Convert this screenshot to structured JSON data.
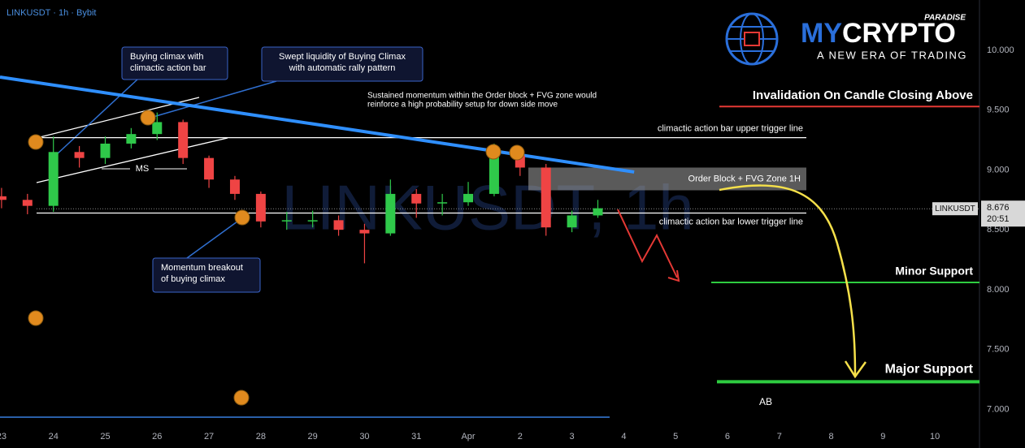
{
  "chart_data": {
    "type": "candlestick",
    "title": "LINKUSDT · 1h · Bybit",
    "watermark": "LINKUSDT, 1h",
    "branding": {
      "name_a": "MY",
      "name_b": "CRYPTO",
      "tag": "PARADISE",
      "slogan": "A NEW ERA OF TRADING"
    },
    "x": [
      0,
      0.5,
      1,
      1.5,
      2,
      2.5,
      3,
      3.5,
      4,
      4.5,
      5,
      5.5,
      6,
      6.5,
      7,
      7.5,
      8,
      8.5,
      9,
      9.5,
      10,
      10.5,
      11,
      11.5
    ],
    "open": [
      8.78,
      8.75,
      8.7,
      9.15,
      9.1,
      9.22,
      9.3,
      9.4,
      9.1,
      8.92,
      8.8,
      8.57,
      8.58,
      8.58,
      8.5,
      8.47,
      8.8,
      8.72,
      8.73,
      8.8,
      9.12,
      9.02,
      8.52,
      8.62
    ],
    "high": [
      8.85,
      8.8,
      9.28,
      9.2,
      9.28,
      9.35,
      9.48,
      9.42,
      9.12,
      8.95,
      8.82,
      8.65,
      8.66,
      8.62,
      8.55,
      8.92,
      8.84,
      8.8,
      8.9,
      9.22,
      9.15,
      9.05,
      8.66,
      8.75
    ],
    "low": [
      8.68,
      8.63,
      8.65,
      9.02,
      9.05,
      9.18,
      9.25,
      9.05,
      8.85,
      8.75,
      8.52,
      8.5,
      8.52,
      8.45,
      8.22,
      8.45,
      8.6,
      8.62,
      8.7,
      8.78,
      8.95,
      8.45,
      8.48,
      8.6
    ],
    "close": [
      8.75,
      8.7,
      9.15,
      9.1,
      9.22,
      9.3,
      9.4,
      9.1,
      8.92,
      8.8,
      8.57,
      8.58,
      8.58,
      8.5,
      8.47,
      8.8,
      8.72,
      8.73,
      8.8,
      9.12,
      9.02,
      8.52,
      8.62,
      8.68
    ],
    "up_color": "#2fc94a",
    "down_color": "#ef4444",
    "xlim": [
      -0.03,
      18.86
    ],
    "ylim": [
      6.86,
      10.42
    ],
    "xticks": [
      {
        "value": 0,
        "label": "23"
      },
      {
        "value": 1,
        "label": "24"
      },
      {
        "value": 2,
        "label": "25"
      },
      {
        "value": 3,
        "label": "26"
      },
      {
        "value": 4,
        "label": "27"
      },
      {
        "value": 5,
        "label": "28"
      },
      {
        "value": 6,
        "label": "29"
      },
      {
        "value": 7,
        "label": "30"
      },
      {
        "value": 8,
        "label": "31"
      },
      {
        "value": 9,
        "label": "Apr"
      },
      {
        "value": 10,
        "label": "2"
      },
      {
        "value": 11,
        "label": "3"
      },
      {
        "value": 12,
        "label": "4"
      },
      {
        "value": 13,
        "label": "5"
      },
      {
        "value": 14,
        "label": "6"
      },
      {
        "value": 15,
        "label": "7"
      },
      {
        "value": 16,
        "label": "8"
      },
      {
        "value": 17,
        "label": "9"
      },
      {
        "value": 18,
        "label": "10"
      }
    ],
    "yticks": [
      {
        "value": 7,
        "label": "7.000"
      },
      {
        "value": 7.5,
        "label": "7.500"
      },
      {
        "value": 8,
        "label": "8.000"
      },
      {
        "value": 8.5,
        "label": "8.500"
      },
      {
        "value": 9,
        "label": "9.000"
      },
      {
        "value": 9.5,
        "label": "9.500"
      },
      {
        "value": 10,
        "label": "10.000"
      }
    ],
    "trendline": {
      "x": [
        -0.03,
        12.2
      ],
      "y": [
        9.776,
        8.983
      ],
      "color": "#2f8fff"
    },
    "levels": [
      {
        "label": "Invalidation On Candle Closing Above",
        "value": 9.53,
        "color": "#e53935"
      },
      {
        "label": "climactic action bar upper trigger line",
        "value": 9.27,
        "color": "#ffffff"
      },
      {
        "label": "climactic action bar lower trigger line",
        "value": 8.64,
        "color": "#ffffff"
      },
      {
        "label": "Minor Support",
        "value": 8.06,
        "color": "#2ecc40"
      },
      {
        "label": "Major Support",
        "value": 7.23,
        "color": "#2ecc40"
      }
    ],
    "zone": {
      "label": "Order Block + FVG Zone 1H",
      "range": [
        8.83,
        9.02
      ]
    },
    "last_price": {
      "symbol": "LINKUSDT",
      "value": 8.676,
      "time": "20:51"
    },
    "callouts": [
      {
        "lines": [
          "Buying climax with",
          "climactic action bar"
        ]
      },
      {
        "lines": [
          "Swept liquidity of Buying Climax",
          "with automatic rally pattern"
        ]
      },
      {
        "lines": [
          "Momentum breakout",
          "of buying climax"
        ]
      }
    ],
    "note": [
      "Sustained momentum within the Order block + FVG zone would",
      "reinforce a high probability setup for down side move"
    ],
    "labels": [
      "MS",
      "AB"
    ]
  }
}
